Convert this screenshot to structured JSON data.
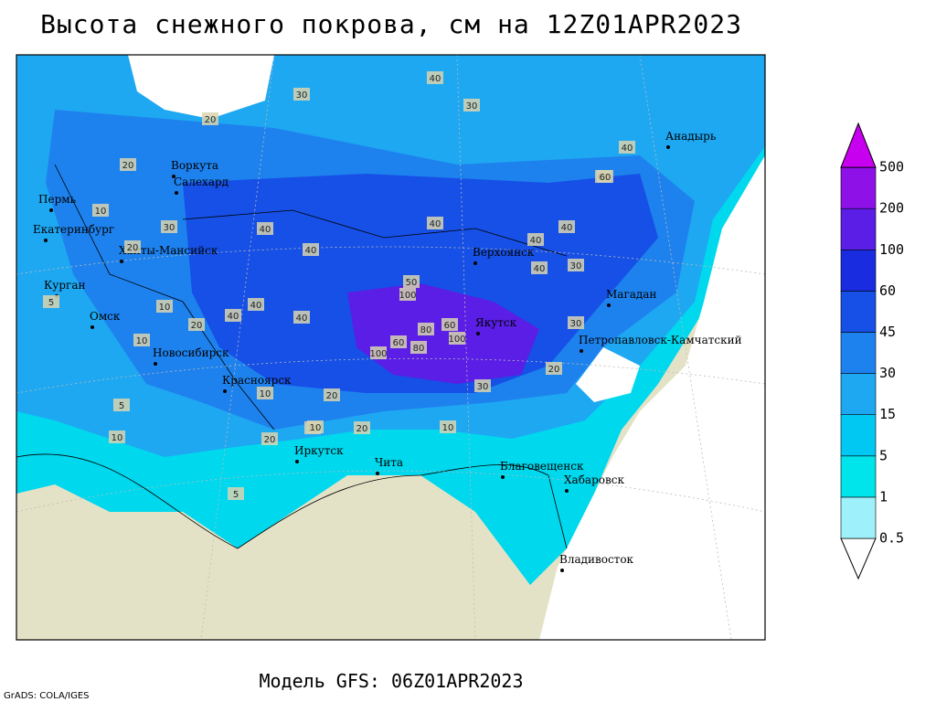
{
  "title": "Высота снежного покрова, см на 12Z01APR2023",
  "subtitle": "Модель GFS: 06Z01APR2023",
  "credit": "GrADS: COLA/IGES",
  "colorbar": {
    "levels": [
      0.5,
      1,
      5,
      15,
      30,
      45,
      60,
      100,
      200,
      500
    ],
    "colors": [
      "#ffffff",
      "#9ef0fa",
      "#00e4ec",
      "#00c8f2",
      "#1ea8f2",
      "#1e82ee",
      "#1650e6",
      "#1a2ce0",
      "#5a1ee6",
      "#8e12e8",
      "#c800f0"
    ]
  },
  "cities": [
    "Воркута",
    "Салехард",
    "Пермь",
    "Екатеринбург",
    "Ханты-Мансийск",
    "Курган",
    "Омск",
    "Новосибирск",
    "Красноярск",
    "Иркутск",
    "Чита",
    "Верхоянск",
    "Якутск",
    "Магадан",
    "Анадырь",
    "Петропавловск-Камчатский",
    "Благовещенск",
    "Хабаровск",
    "Владивосток"
  ],
  "contour_labels": [
    40,
    30,
    30,
    20,
    40,
    40,
    40,
    40,
    40,
    60,
    40,
    20,
    10,
    20,
    30,
    40,
    40,
    50,
    60,
    100,
    80,
    60,
    100,
    80,
    30,
    20,
    20,
    10,
    10,
    20,
    10,
    5,
    10,
    5,
    10,
    20,
    10,
    5,
    60,
    40,
    30,
    20,
    10,
    40,
    100,
    30
  ]
}
